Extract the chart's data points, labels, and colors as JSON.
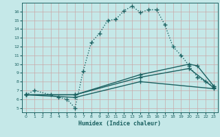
{
  "xlabel": "Humidex (Indice chaleur)",
  "bg_color": "#c5e8e8",
  "grid_color": "#c8a8a8",
  "line_color": "#1a6060",
  "xlim": [
    -0.5,
    23.5
  ],
  "ylim": [
    4.5,
    17.0
  ],
  "yticks": [
    5,
    6,
    7,
    8,
    9,
    10,
    11,
    12,
    13,
    14,
    15,
    16
  ],
  "xticks": [
    0,
    1,
    2,
    3,
    4,
    5,
    6,
    7,
    8,
    9,
    10,
    11,
    12,
    13,
    14,
    15,
    16,
    17,
    18,
    19,
    20,
    21,
    22,
    23
  ],
  "lines": [
    {
      "x": [
        0,
        1,
        3,
        4,
        5,
        6,
        7,
        8,
        9,
        10,
        11,
        12,
        13,
        14,
        15,
        16,
        17,
        18,
        19,
        20,
        21,
        22,
        23
      ],
      "y": [
        6.5,
        7.0,
        6.5,
        6.2,
        6.0,
        5.0,
        9.2,
        12.5,
        13.5,
        15.0,
        15.1,
        16.1,
        16.6,
        15.9,
        16.2,
        16.2,
        14.5,
        12.0,
        11.0,
        9.8,
        8.5,
        8.0,
        7.5
      ],
      "marker": "+",
      "markersize": 4,
      "linewidth": 1.0,
      "linestyle": ":"
    },
    {
      "x": [
        0,
        6,
        14,
        20,
        21,
        23
      ],
      "y": [
        6.5,
        6.5,
        8.8,
        10.0,
        9.8,
        7.5
      ],
      "marker": "+",
      "markersize": 4,
      "linewidth": 1.0,
      "linestyle": "-"
    },
    {
      "x": [
        0,
        6,
        14,
        20,
        23
      ],
      "y": [
        6.5,
        6.5,
        8.5,
        9.5,
        7.3
      ],
      "marker": "+",
      "markersize": 4,
      "linewidth": 1.0,
      "linestyle": "-"
    },
    {
      "x": [
        0,
        6,
        14,
        23
      ],
      "y": [
        6.5,
        6.2,
        8.0,
        7.2
      ],
      "marker": "+",
      "markersize": 4,
      "linewidth": 1.0,
      "linestyle": "-"
    }
  ]
}
